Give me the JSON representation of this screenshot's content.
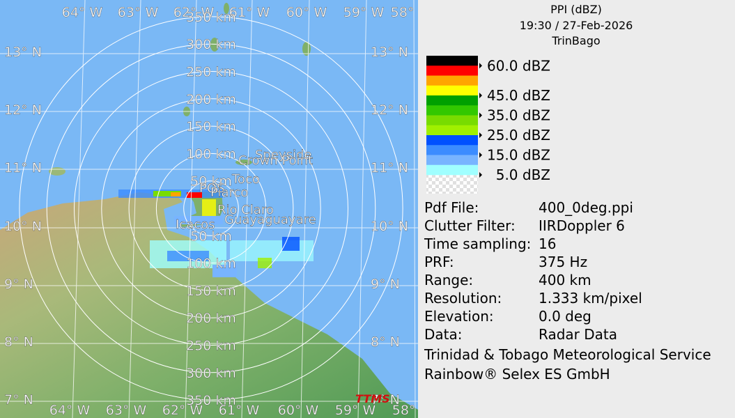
{
  "header": {
    "product": "PPI (dBZ)",
    "time": "19:30 / 27-Feb-2026",
    "site": "TrinBago"
  },
  "map": {
    "lat_labels": [
      "13° N",
      "12° N",
      "11° N",
      "10° N",
      "9° N",
      "8° N",
      "7° N"
    ],
    "lon_labels": [
      "64° W",
      "63° W",
      "62° W",
      "61° W",
      "60° W",
      "59° W",
      "58° W"
    ],
    "range_labels": [
      "50 km",
      "100 km",
      "150 km",
      "200 km",
      "250 km",
      "300 km",
      "350 km"
    ],
    "places": [
      "Speyside",
      "Crown Point",
      "Toco",
      "POS",
      "Piarco",
      "Rio Claro",
      "Guayaguayare",
      "Icacos"
    ],
    "logo": "TTMS"
  },
  "legend": {
    "colors": [
      "#000000",
      "#ff0000",
      "#ffa500",
      "#ffff00",
      "#00a000",
      "#32c800",
      "#78dc00",
      "#a0f000",
      "#0050ff",
      "#3c8cff",
      "#78b4ff",
      "#a0ffff"
    ],
    "labels": [
      "60.0 dBZ",
      "45.0 dBZ",
      "35.0 dBZ",
      "25.0 dBZ",
      "15.0 dBZ",
      "5.0 dBZ"
    ]
  },
  "info": {
    "rows": [
      [
        "Pdf File:",
        "400_0deg.ppi"
      ],
      [
        "Clutter Filter:",
        "IIRDoppler 6"
      ],
      [
        "Time sampling:",
        "16"
      ],
      [
        "PRF:",
        "375 Hz"
      ],
      [
        "Range:",
        "400 km"
      ],
      [
        "Resolution:",
        "1.333 km/pixel"
      ],
      [
        "Elevation:",
        "0.0 deg"
      ],
      [
        "Data:",
        "Radar Data"
      ]
    ],
    "credits": [
      "Trinidad & Tobago Meteorological Service",
      "Rainbow® Selex ES GmbH"
    ]
  }
}
